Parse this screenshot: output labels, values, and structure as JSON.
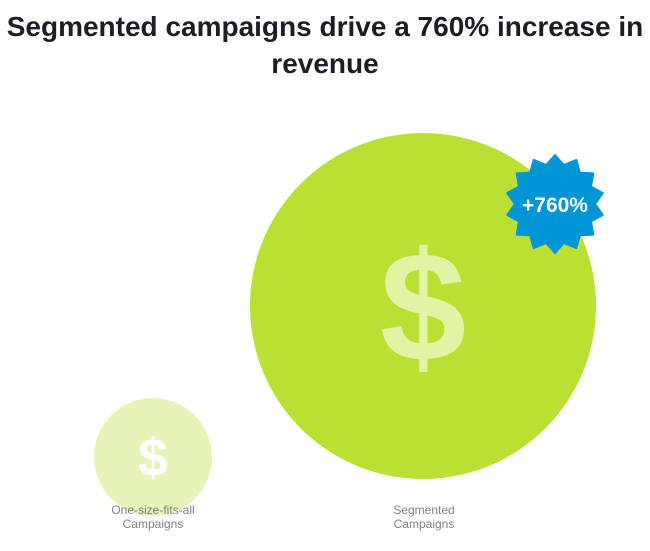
{
  "chart_data": {
    "type": "bubble",
    "title_lines": [
      "Segmented campaigns drive a 760% increase in",
      "revenue"
    ],
    "categories": [
      {
        "label_lines": [
          "One-size-fits-all",
          "Campaigns"
        ],
        "value": 1
      },
      {
        "label_lines": [
          "Segmented",
          "Campaigns"
        ],
        "value": 8.6
      }
    ],
    "bubble_symbol": "$",
    "badge": "+760%",
    "grid": false,
    "legend": "none"
  },
  "colors": {
    "bubble": "#bbe034",
    "symbol": "#e2f3a4",
    "badge": "#0096d6",
    "badge_text": "#ffffff",
    "title": "#1b1e24",
    "label": "#7d8289"
  },
  "icons": {
    "bubble_symbol": "dollar-sign-icon",
    "badge_shape": "starburst-badge"
  }
}
